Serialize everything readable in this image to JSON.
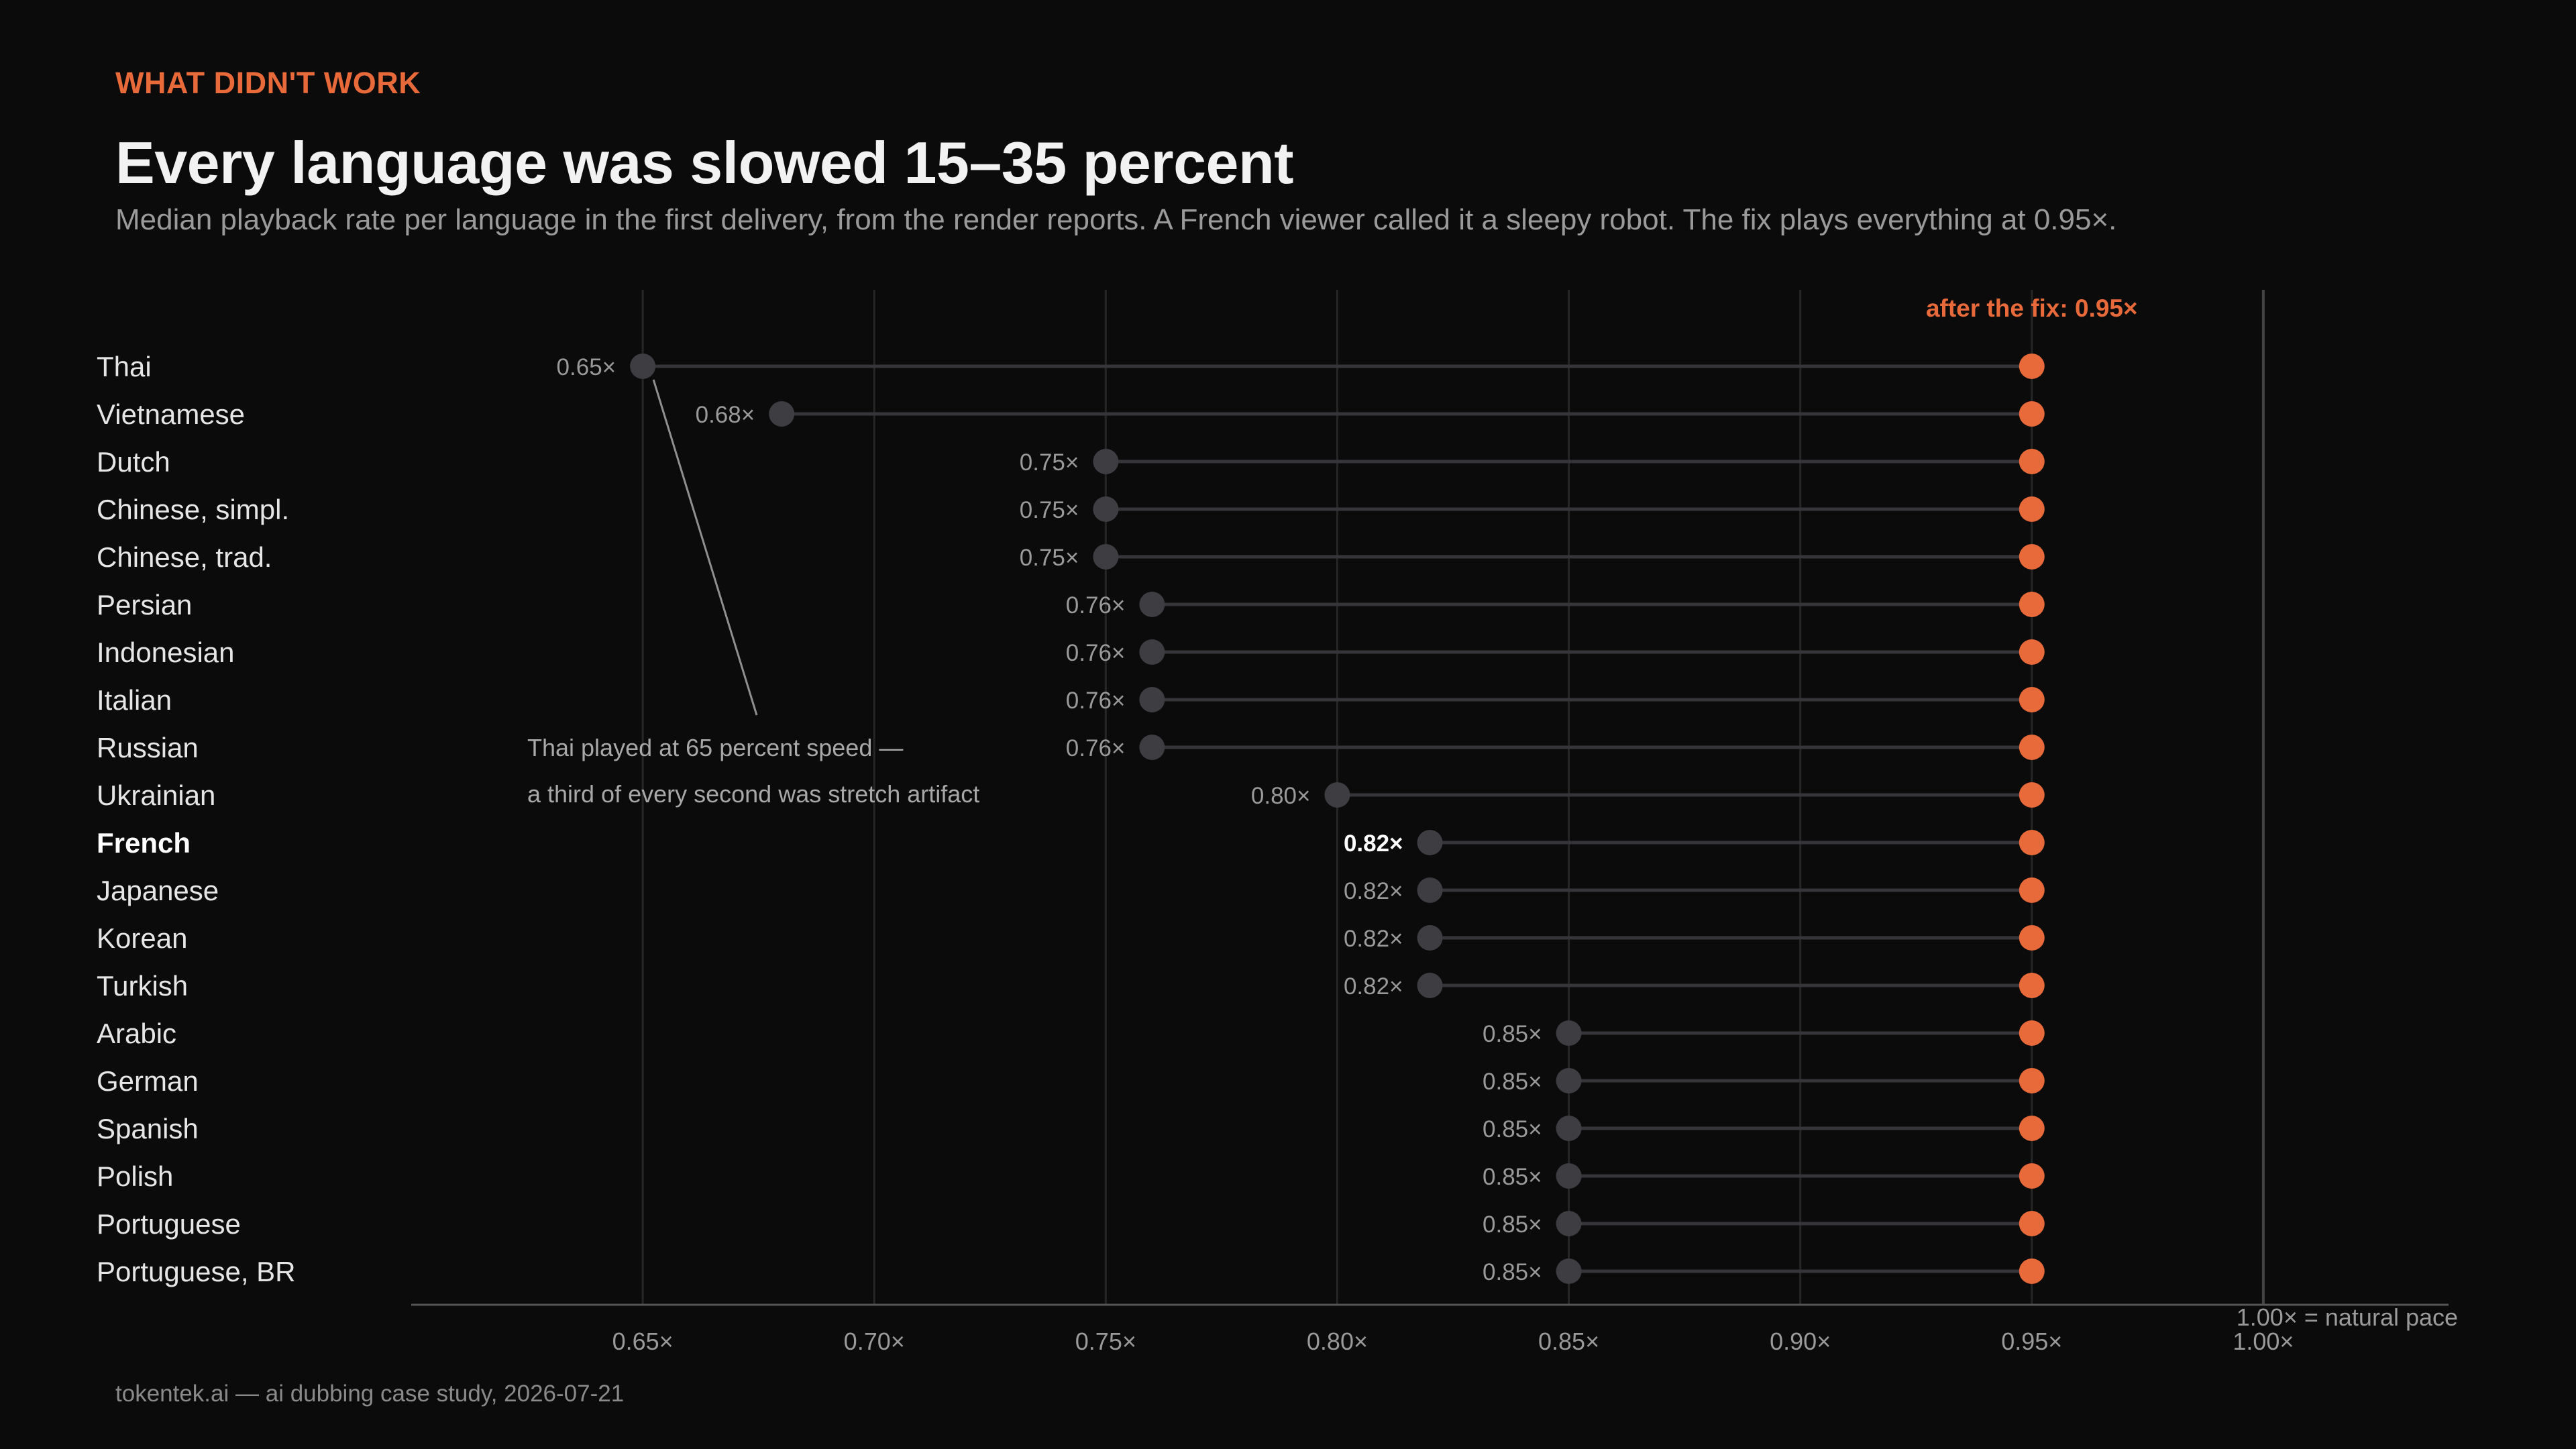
{
  "header": {
    "eyebrow": "WHAT DIDN'T WORK",
    "title": "Every language was slowed 15–35 percent",
    "subtitle": "Median playback rate per language in the first delivery, from the render reports. A French viewer called it a sleepy robot. The fix plays everything at 0.95×."
  },
  "footer": {
    "source": "tokentek.ai — ai dubbing case study, 2026-07-21"
  },
  "colors": {
    "before_dot": "#3d3d42",
    "after_dot": "#e8693a",
    "connector": "#35353a",
    "grid": "#262626",
    "axis": "#555555",
    "natural_line": "#444444"
  },
  "chart_data": {
    "type": "dumbbell",
    "categories": [
      "Thai",
      "Vietnamese",
      "Dutch",
      "Chinese, simpl.",
      "Chinese, trad.",
      "Persian",
      "Indonesian",
      "Italian",
      "Russian",
      "Ukrainian",
      "French",
      "Japanese",
      "Korean",
      "Turkish",
      "Arabic",
      "German",
      "Spanish",
      "Polish",
      "Portuguese",
      "Portuguese, BR"
    ],
    "series": [
      {
        "values": [
          0.65,
          0.68,
          0.75,
          0.75,
          0.75,
          0.76,
          0.76,
          0.76,
          0.76,
          0.8,
          0.82,
          0.82,
          0.82,
          0.82,
          0.85,
          0.85,
          0.85,
          0.85,
          0.85,
          0.85
        ]
      },
      {
        "values": [
          0.95,
          0.95,
          0.95,
          0.95,
          0.95,
          0.95,
          0.95,
          0.95,
          0.95,
          0.95,
          0.95,
          0.95,
          0.95,
          0.95,
          0.95,
          0.95,
          0.95,
          0.95,
          0.95,
          0.95
        ]
      }
    ],
    "value_labels": [
      "0.65×",
      "0.68×",
      "0.75×",
      "0.75×",
      "0.75×",
      "0.76×",
      "0.76×",
      "0.76×",
      "0.76×",
      "0.80×",
      "0.82×",
      "0.82×",
      "0.82×",
      "0.82×",
      "0.85×",
      "0.85×",
      "0.85×",
      "0.85×",
      "0.85×",
      "0.85×"
    ],
    "highlight": "French",
    "xlim": [
      0.6,
      1.04
    ],
    "x_ticks": [
      0.65,
      0.7,
      0.75,
      0.8,
      0.85,
      0.9,
      0.95,
      1.0
    ],
    "x_tick_labels": [
      "0.65×",
      "0.70×",
      "0.75×",
      "0.80×",
      "0.85×",
      "0.90×",
      "0.95×",
      "1.00×"
    ],
    "grid": true,
    "after_label": "after the fix: 0.95×",
    "reference": {
      "x": 1.0,
      "label": "1.00× = natural pace"
    },
    "annotation": {
      "category": "Thai",
      "lines": [
        "Thai played at 65 percent speed —",
        "a third of every second was stretch artifact"
      ]
    }
  }
}
